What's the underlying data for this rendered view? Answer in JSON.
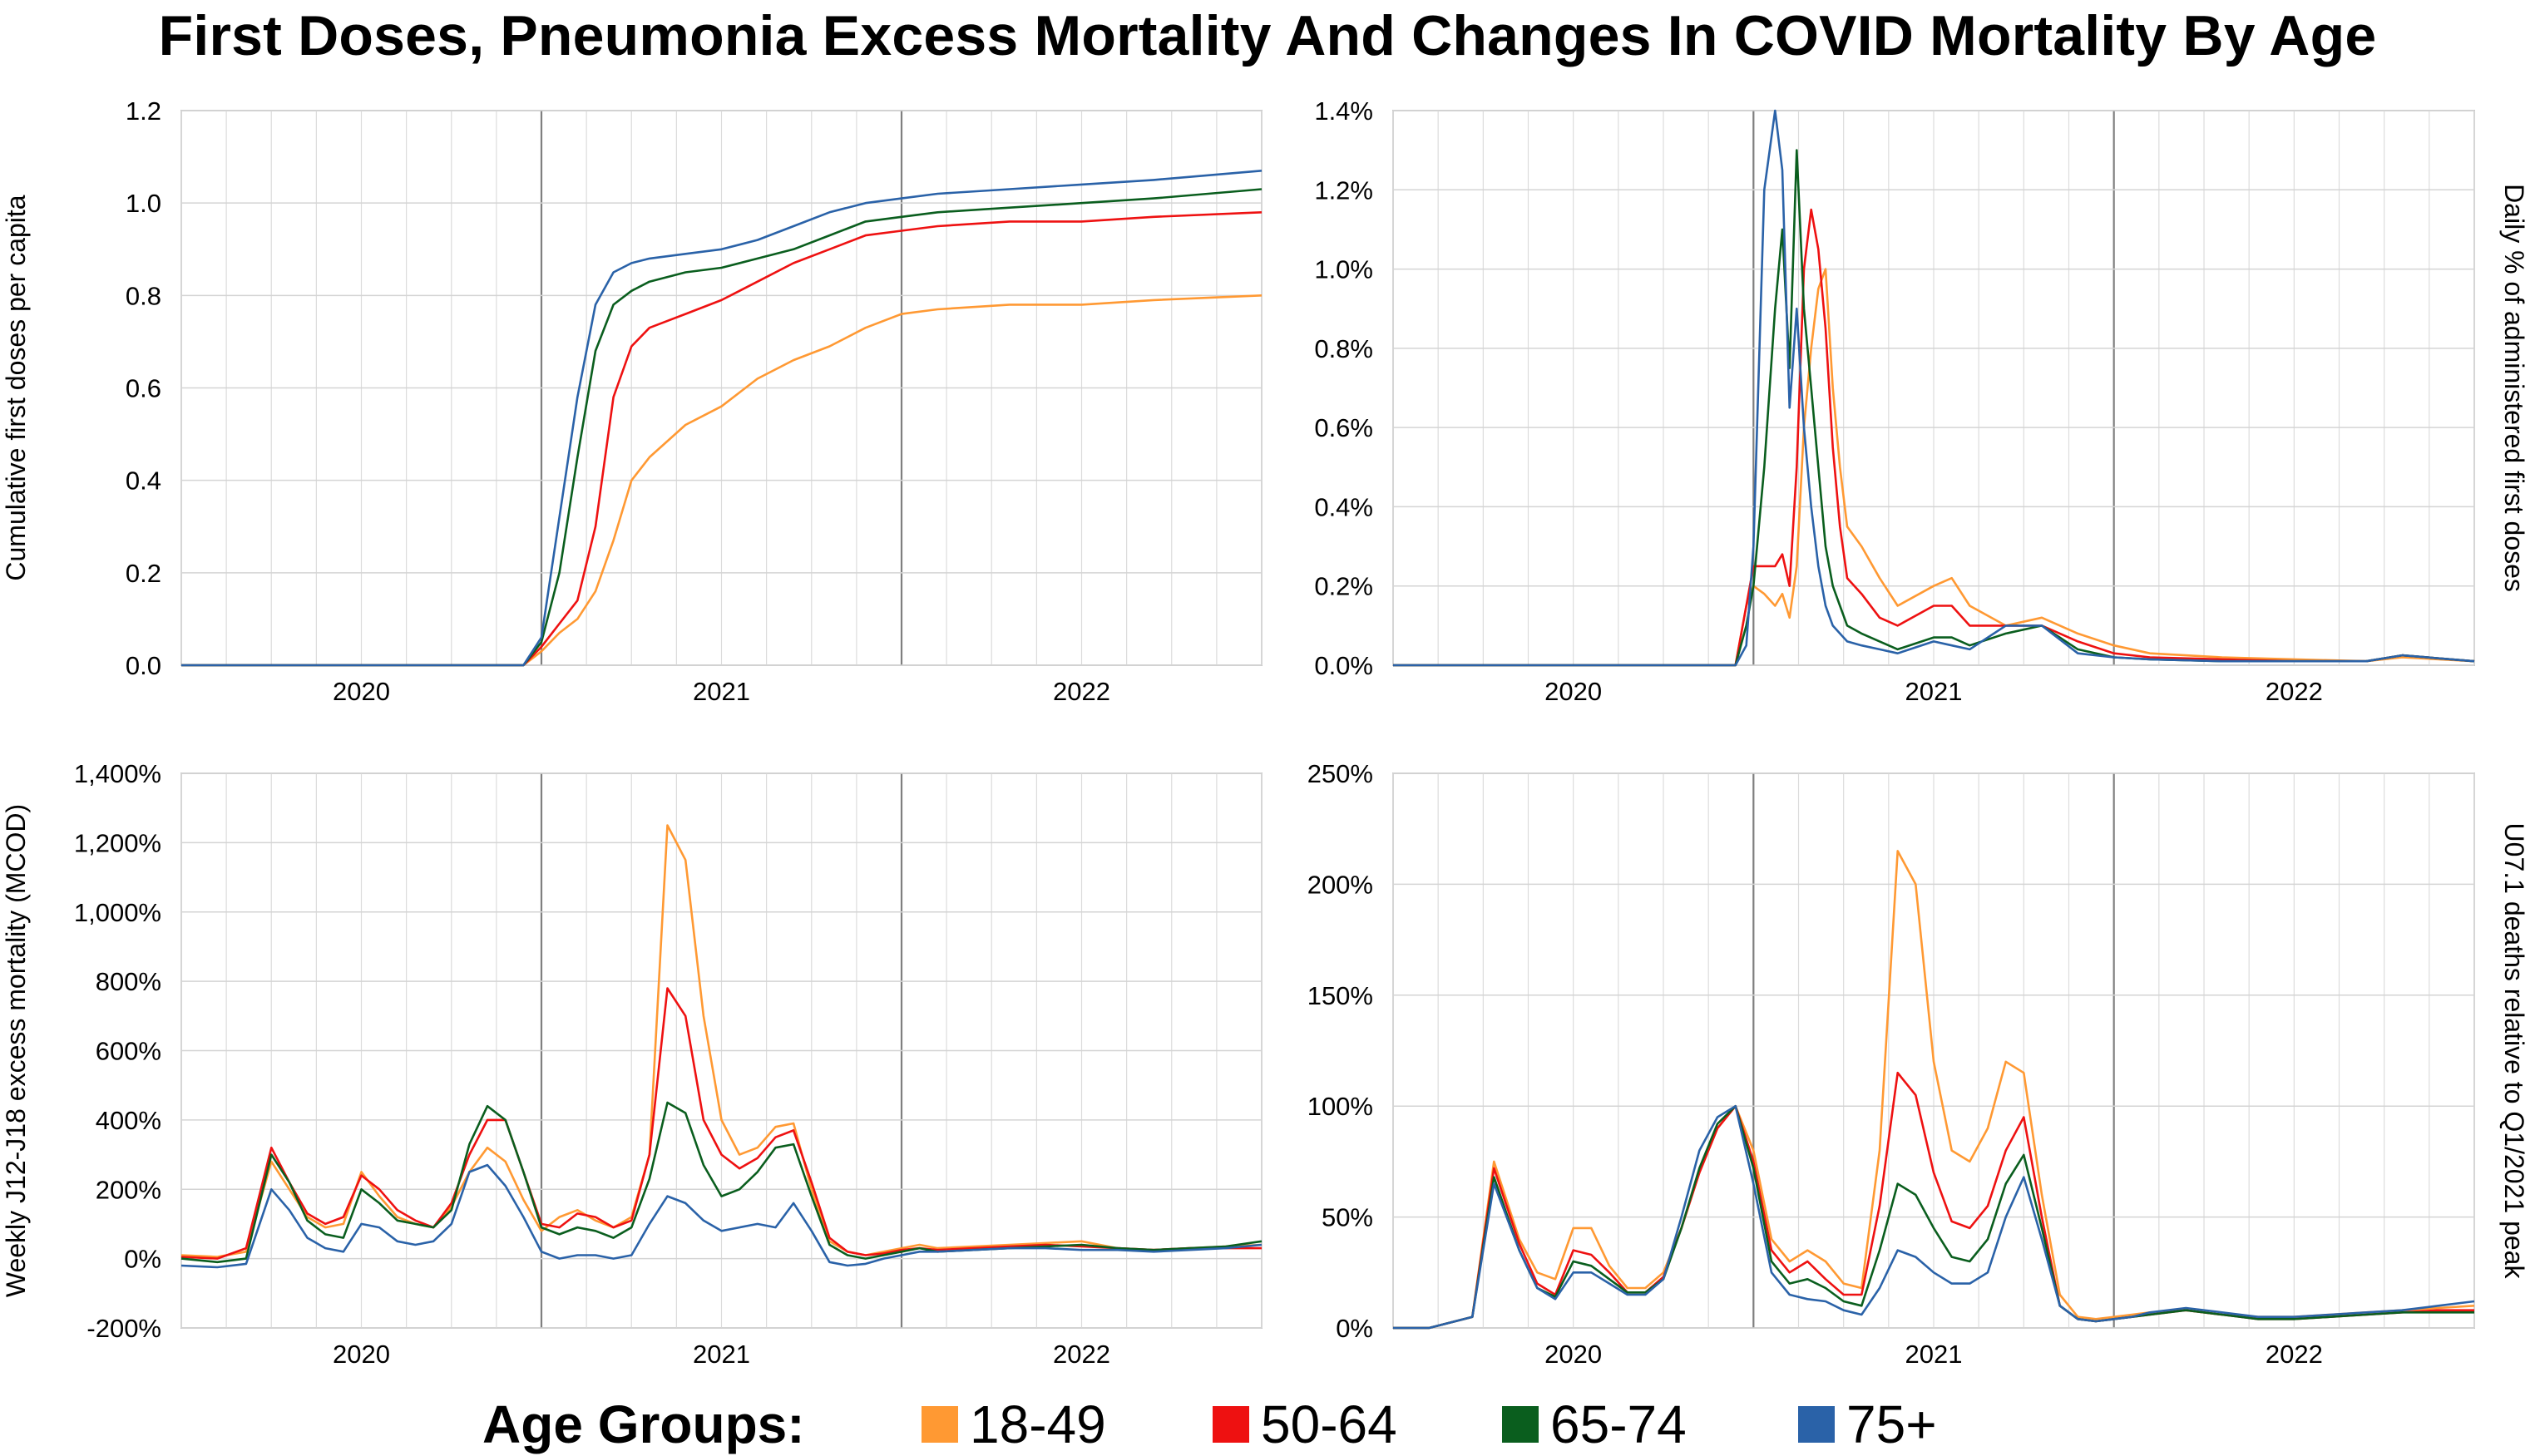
{
  "title": "First Doses, Pneumonia Excess Mortality And Changes In COVID Mortality By Age",
  "legend": {
    "title": "Age Groups:",
    "items": [
      {
        "label": "18-49",
        "color": "#ff9933"
      },
      {
        "label": "50-64",
        "color": "#ee1111"
      },
      {
        "label": "65-74",
        "color": "#0a5e1e"
      },
      {
        "label": "75+",
        "color": "#2a62a8"
      }
    ]
  },
  "chart_data": [
    {
      "type": "line",
      "ylabel": "Cumulative first doses per capita",
      "ylabel_side": "left",
      "ylim": [
        0,
        1.2
      ],
      "yticks": [
        "0.0",
        "0.2",
        "0.4",
        "0.6",
        "0.8",
        "1.0",
        "1.2"
      ],
      "xlim": [
        2019.5,
        2022.5
      ],
      "xticks": [
        "2020",
        "2021",
        "2022"
      ],
      "grid": true,
      "x": [
        2019.5,
        2020.45,
        2020.5,
        2020.55,
        2020.6,
        2020.65,
        2020.7,
        2020.75,
        2020.8,
        2020.9,
        2021.0,
        2021.1,
        2021.2,
        2021.3,
        2021.4,
        2021.5,
        2021.6,
        2021.8,
        2022.0,
        2022.2,
        2022.5
      ],
      "series": [
        {
          "name": "18-49",
          "values": [
            0,
            0,
            0.03,
            0.07,
            0.1,
            0.16,
            0.27,
            0.4,
            0.45,
            0.52,
            0.56,
            0.62,
            0.66,
            0.69,
            0.73,
            0.76,
            0.77,
            0.78,
            0.78,
            0.79,
            0.8
          ]
        },
        {
          "name": "50-64",
          "values": [
            0,
            0,
            0.04,
            0.09,
            0.14,
            0.3,
            0.58,
            0.69,
            0.73,
            0.76,
            0.79,
            0.83,
            0.87,
            0.9,
            0.93,
            0.94,
            0.95,
            0.96,
            0.96,
            0.97,
            0.98
          ]
        },
        {
          "name": "65-74",
          "values": [
            0,
            0,
            0.05,
            0.2,
            0.45,
            0.68,
            0.78,
            0.81,
            0.83,
            0.85,
            0.86,
            0.88,
            0.9,
            0.93,
            0.96,
            0.97,
            0.98,
            0.99,
            1.0,
            1.01,
            1.03
          ]
        },
        {
          "name": "75+",
          "values": [
            0,
            0,
            0.06,
            0.32,
            0.58,
            0.78,
            0.85,
            0.87,
            0.88,
            0.89,
            0.9,
            0.92,
            0.95,
            0.98,
            1.0,
            1.01,
            1.02,
            1.03,
            1.04,
            1.05,
            1.07
          ]
        }
      ]
    },
    {
      "type": "line",
      "ylabel": "Daily % of administered first doses",
      "ylabel_side": "right",
      "ylim": [
        0,
        1.4
      ],
      "yticks": [
        "0.0%",
        "0.2%",
        "0.4%",
        "0.6%",
        "0.8%",
        "1.0%",
        "1.2%",
        "1.4%"
      ],
      "xlim": [
        2019.5,
        2022.5
      ],
      "xticks": [
        "2020",
        "2021",
        "2022"
      ],
      "grid": true,
      "x": [
        2019.5,
        2020.45,
        2020.48,
        2020.5,
        2020.53,
        2020.56,
        2020.58,
        2020.6,
        2020.62,
        2020.64,
        2020.66,
        2020.68,
        2020.7,
        2020.72,
        2020.74,
        2020.76,
        2020.8,
        2020.85,
        2020.9,
        2021.0,
        2021.05,
        2021.1,
        2021.2,
        2021.3,
        2021.4,
        2021.5,
        2021.6,
        2021.8,
        2022.0,
        2022.2,
        2022.3,
        2022.5
      ],
      "series": [
        {
          "name": "18-49",
          "values": [
            0,
            0,
            0.15,
            0.2,
            0.18,
            0.15,
            0.18,
            0.12,
            0.25,
            0.6,
            0.8,
            0.95,
            1.0,
            0.7,
            0.5,
            0.35,
            0.3,
            0.22,
            0.15,
            0.2,
            0.22,
            0.15,
            0.1,
            0.12,
            0.08,
            0.05,
            0.03,
            0.02,
            0.015,
            0.01,
            0.02,
            0.01
          ]
        },
        {
          "name": "50-64",
          "values": [
            0,
            0,
            0.15,
            0.25,
            0.25,
            0.25,
            0.28,
            0.2,
            0.5,
            1.0,
            1.15,
            1.05,
            0.85,
            0.55,
            0.35,
            0.22,
            0.18,
            0.12,
            0.1,
            0.15,
            0.15,
            0.1,
            0.1,
            0.1,
            0.06,
            0.03,
            0.02,
            0.015,
            0.01,
            0.01,
            0.025,
            0.01
          ]
        },
        {
          "name": "65-74",
          "values": [
            0,
            0,
            0.1,
            0.2,
            0.5,
            0.9,
            1.1,
            0.75,
            1.3,
            0.9,
            0.7,
            0.5,
            0.3,
            0.2,
            0.15,
            0.1,
            0.08,
            0.06,
            0.04,
            0.07,
            0.07,
            0.05,
            0.08,
            0.1,
            0.04,
            0.02,
            0.015,
            0.01,
            0.01,
            0.01,
            0.025,
            0.01
          ]
        },
        {
          "name": "75+",
          "values": [
            0,
            0,
            0.05,
            0.3,
            1.2,
            1.4,
            1.25,
            0.65,
            0.9,
            0.6,
            0.4,
            0.25,
            0.15,
            0.1,
            0.08,
            0.06,
            0.05,
            0.04,
            0.03,
            0.06,
            0.05,
            0.04,
            0.1,
            0.1,
            0.03,
            0.02,
            0.015,
            0.01,
            0.01,
            0.01,
            0.025,
            0.01
          ]
        }
      ]
    },
    {
      "type": "line",
      "ylabel": "Weekly J12-J18 excess mortality (MCOD)",
      "ylabel_side": "left",
      "ylim": [
        -200,
        1400
      ],
      "yticks": [
        "-200%",
        "0%",
        "200%",
        "400%",
        "600%",
        "800%",
        "1,000%",
        "1,200%",
        "1,400%"
      ],
      "xlim": [
        2019.5,
        2022.5
      ],
      "xticks": [
        "2020",
        "2021",
        "2022"
      ],
      "grid": true,
      "x": [
        2019.5,
        2019.6,
        2019.68,
        2019.75,
        2019.8,
        2019.85,
        2019.9,
        2019.95,
        2020.0,
        2020.05,
        2020.1,
        2020.15,
        2020.2,
        2020.25,
        2020.3,
        2020.35,
        2020.4,
        2020.45,
        2020.5,
        2020.55,
        2020.6,
        2020.65,
        2020.7,
        2020.75,
        2020.8,
        2020.85,
        2020.9,
        2020.95,
        2021.0,
        2021.05,
        2021.1,
        2021.15,
        2021.2,
        2021.25,
        2021.3,
        2021.35,
        2021.4,
        2021.45,
        2021.5,
        2021.55,
        2021.6,
        2021.7,
        2021.8,
        2021.9,
        2022.0,
        2022.1,
        2022.2,
        2022.3,
        2022.4,
        2022.5
      ],
      "series": [
        {
          "name": "18-49",
          "values": [
            10,
            5,
            20,
            280,
            200,
            120,
            90,
            100,
            250,
            180,
            120,
            100,
            90,
            150,
            250,
            320,
            280,
            170,
            80,
            120,
            140,
            110,
            90,
            120,
            300,
            1250,
            1150,
            700,
            400,
            300,
            320,
            380,
            390,
            200,
            50,
            20,
            10,
            20,
            30,
            40,
            30,
            35,
            40,
            45,
            50,
            30,
            25,
            30,
            35,
            40
          ]
        },
        {
          "name": "50-64",
          "values": [
            5,
            0,
            30,
            320,
            220,
            130,
            100,
            120,
            240,
            200,
            140,
            110,
            90,
            160,
            300,
            400,
            400,
            250,
            100,
            90,
            130,
            120,
            90,
            110,
            300,
            780,
            700,
            400,
            300,
            260,
            290,
            350,
            370,
            220,
            60,
            20,
            10,
            15,
            25,
            30,
            25,
            30,
            35,
            40,
            35,
            30,
            25,
            30,
            30,
            30
          ]
        },
        {
          "name": "65-74",
          "values": [
            0,
            -10,
            0,
            300,
            220,
            110,
            70,
            60,
            200,
            160,
            110,
            100,
            90,
            140,
            330,
            440,
            400,
            250,
            90,
            70,
            90,
            80,
            60,
            90,
            230,
            450,
            420,
            270,
            180,
            200,
            250,
            320,
            330,
            180,
            40,
            10,
            0,
            10,
            20,
            30,
            20,
            25,
            30,
            35,
            40,
            30,
            25,
            30,
            35,
            50
          ]
        },
        {
          "name": "75+",
          "values": [
            -20,
            -25,
            -15,
            200,
            140,
            60,
            30,
            20,
            100,
            90,
            50,
            40,
            50,
            100,
            250,
            270,
            210,
            120,
            20,
            0,
            10,
            10,
            0,
            10,
            100,
            180,
            160,
            110,
            80,
            90,
            100,
            90,
            160,
            80,
            -10,
            -20,
            -15,
            0,
            10,
            20,
            20,
            25,
            30,
            30,
            25,
            25,
            20,
            25,
            30,
            40
          ]
        }
      ]
    },
    {
      "type": "line",
      "ylabel": "U07.1 deaths relative to Q1/2021 peak",
      "ylabel_side": "right",
      "ylim": [
        0,
        250
      ],
      "yticks": [
        "0%",
        "50%",
        "100%",
        "150%",
        "200%",
        "250%"
      ],
      "xlim": [
        2019.5,
        2022.5
      ],
      "xticks": [
        "2020",
        "2021",
        "2022"
      ],
      "grid": true,
      "x": [
        2019.5,
        2019.6,
        2019.72,
        2019.78,
        2019.85,
        2019.9,
        2019.95,
        2020.0,
        2020.05,
        2020.1,
        2020.15,
        2020.2,
        2020.25,
        2020.3,
        2020.35,
        2020.4,
        2020.45,
        2020.5,
        2020.55,
        2020.6,
        2020.65,
        2020.7,
        2020.75,
        2020.8,
        2020.85,
        2020.9,
        2020.95,
        2021.0,
        2021.05,
        2021.1,
        2021.15,
        2021.2,
        2021.25,
        2021.3,
        2021.35,
        2021.4,
        2021.45,
        2021.5,
        2021.55,
        2021.6,
        2021.7,
        2021.8,
        2021.9,
        2022.0,
        2022.1,
        2022.2,
        2022.3,
        2022.4,
        2022.5
      ],
      "series": [
        {
          "name": "18-49",
          "values": [
            0,
            0,
            5,
            75,
            40,
            25,
            22,
            45,
            45,
            28,
            18,
            18,
            25,
            45,
            70,
            90,
            100,
            80,
            40,
            30,
            35,
            30,
            20,
            18,
            80,
            215,
            200,
            120,
            80,
            75,
            90,
            120,
            115,
            60,
            15,
            5,
            4,
            5,
            6,
            7,
            8,
            6,
            5,
            5,
            6,
            7,
            8,
            9,
            10
          ]
        },
        {
          "name": "50-64",
          "values": [
            0,
            0,
            5,
            72,
            38,
            20,
            15,
            35,
            33,
            25,
            16,
            16,
            23,
            45,
            70,
            90,
            100,
            75,
            35,
            25,
            30,
            22,
            15,
            15,
            55,
            115,
            105,
            70,
            48,
            45,
            55,
            80,
            95,
            50,
            10,
            4,
            3,
            4,
            5,
            6,
            8,
            6,
            4,
            4,
            5,
            6,
            7,
            8,
            8
          ]
        },
        {
          "name": "65-74",
          "values": [
            0,
            0,
            5,
            68,
            35,
            18,
            14,
            30,
            28,
            22,
            16,
            16,
            22,
            45,
            72,
            92,
            100,
            72,
            30,
            20,
            22,
            18,
            12,
            10,
            35,
            65,
            60,
            45,
            32,
            30,
            40,
            65,
            78,
            45,
            10,
            4,
            3,
            4,
            5,
            6,
            8,
            6,
            4,
            4,
            5,
            6,
            7,
            7,
            7
          ]
        },
        {
          "name": "75+",
          "values": [
            0,
            0,
            5,
            65,
            35,
            18,
            13,
            25,
            25,
            20,
            15,
            15,
            22,
            50,
            80,
            95,
            100,
            65,
            25,
            15,
            13,
            12,
            8,
            6,
            18,
            35,
            32,
            25,
            20,
            20,
            25,
            50,
            68,
            40,
            10,
            4,
            3,
            4,
            5,
            7,
            9,
            7,
            5,
            5,
            6,
            7,
            8,
            10,
            12
          ]
        }
      ]
    }
  ]
}
